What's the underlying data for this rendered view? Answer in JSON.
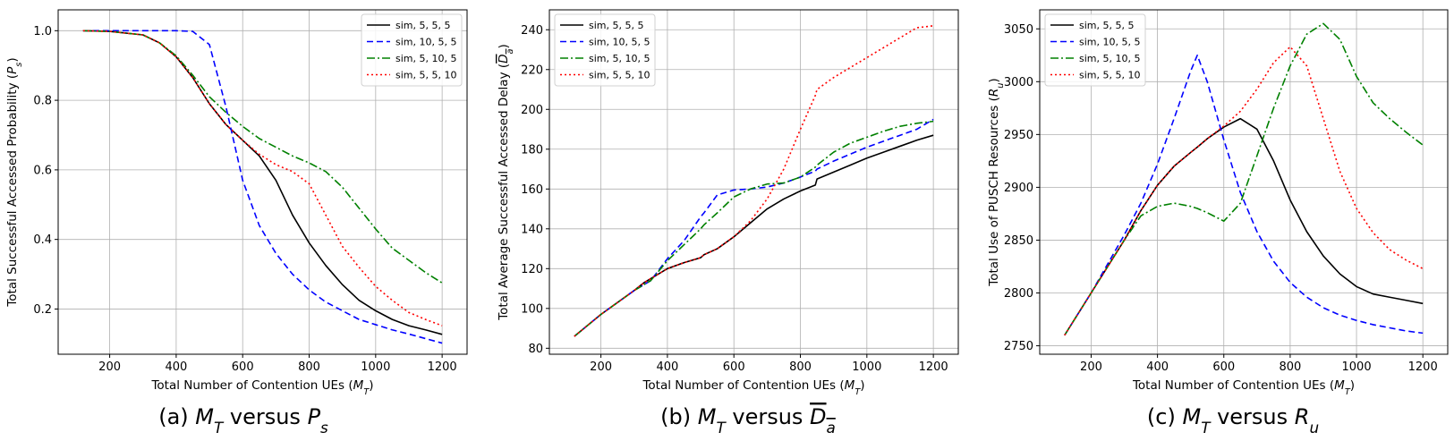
{
  "colors": {
    "black": "#000000",
    "blue": "#0000ff",
    "green": "#008000",
    "red": "#ff0000",
    "grid": "#b0b0b0"
  },
  "legend_position": "upper-right for (a), upper-left for (b) and (c)",
  "chart_data": [
    {
      "type": "line",
      "caption": "(a) $M_T$ versus $P_s$",
      "caption_parts": {
        "prefix": "(a) ",
        "x_sym": "M",
        "x_sub": "T",
        "mid": " versus ",
        "y_sym": "P",
        "y_sub": "s",
        "y_overline": false
      },
      "xlabel": "Total Number of Contention UEs ($M_T$)",
      "ylabel": "Total Successful Accessed Probability ($P_s$)",
      "xlim": [
        45,
        1275
      ],
      "ylim": [
        0.07,
        1.06
      ],
      "xticks": [
        200,
        400,
        600,
        800,
        1000,
        1200
      ],
      "yticks": [
        0.2,
        0.4,
        0.6,
        0.8,
        1.0
      ],
      "ytick_labels": [
        "0.2",
        "0.4",
        "0.6",
        "0.8",
        "1.0"
      ],
      "grid": true,
      "legend": "upper-right",
      "x": [
        120,
        200,
        300,
        350,
        400,
        450,
        500,
        550,
        600,
        650,
        700,
        750,
        800,
        850,
        900,
        950,
        1000,
        1050,
        1100,
        1150,
        1200
      ],
      "series": [
        {
          "name": "sim, 5, 5, 5",
          "color": "#000000",
          "dash": "",
          "values": [
            1.0,
            0.998,
            0.988,
            0.965,
            0.925,
            0.865,
            0.79,
            0.73,
            0.685,
            0.64,
            0.57,
            0.47,
            0.39,
            0.325,
            0.27,
            0.225,
            0.195,
            0.17,
            0.152,
            0.14,
            0.127
          ]
        },
        {
          "name": "sim, 10, 5, 5",
          "color": "#0000ff",
          "dash": "7,4",
          "values": [
            1.0,
            1.0,
            1.0,
            1.0,
            1.0,
            0.998,
            0.96,
            0.78,
            0.57,
            0.44,
            0.36,
            0.3,
            0.255,
            0.22,
            0.195,
            0.17,
            0.155,
            0.14,
            0.128,
            0.115,
            0.102
          ]
        },
        {
          "name": "sim, 5, 10, 5",
          "color": "#008000",
          "dash": "9,3,2,3",
          "values": [
            1.0,
            0.998,
            0.988,
            0.965,
            0.928,
            0.872,
            0.81,
            0.765,
            0.725,
            0.69,
            0.665,
            0.64,
            0.62,
            0.595,
            0.55,
            0.49,
            0.43,
            0.375,
            0.34,
            0.305,
            0.275
          ]
        },
        {
          "name": "sim, 5, 5, 10",
          "color": "#ff0000",
          "dash": "2,3",
          "values": [
            1.0,
            0.998,
            0.988,
            0.965,
            0.925,
            0.865,
            0.79,
            0.73,
            0.685,
            0.645,
            0.615,
            0.595,
            0.56,
            0.47,
            0.38,
            0.32,
            0.265,
            0.225,
            0.19,
            0.17,
            0.152
          ]
        }
      ]
    },
    {
      "type": "line",
      "caption": "(b) $M_T$ versus $\\overline{D_a}$",
      "caption_parts": {
        "prefix": "(b) ",
        "x_sym": "M",
        "x_sub": "T",
        "mid": " versus ",
        "y_sym": "D",
        "y_sub": "a",
        "y_overline": true
      },
      "xlabel": "Total Number of Contention UEs ($M_T$)",
      "ylabel": "Total Average Successful Accessed Delay ($\\overline{D_a}$)",
      "xlim": [
        45,
        1275
      ],
      "ylim": [
        77,
        250
      ],
      "xticks": [
        200,
        400,
        600,
        800,
        1000,
        1200
      ],
      "yticks": [
        80,
        100,
        120,
        140,
        160,
        180,
        200,
        220,
        240
      ],
      "ytick_labels": [
        "80",
        "100",
        "120",
        "140",
        "160",
        "180",
        "200",
        "220",
        "240"
      ],
      "grid": true,
      "legend": "upper-left",
      "x": [
        120,
        200,
        300,
        330,
        350,
        400,
        450,
        500,
        510,
        550,
        600,
        650,
        700,
        750,
        800,
        845,
        850,
        900,
        950,
        1000,
        1050,
        1100,
        1150,
        1200
      ],
      "series": [
        {
          "name": "sim, 5, 5, 5",
          "color": "#000000",
          "dash": "",
          "values": [
            86,
            97,
            109,
            113,
            115,
            120,
            123,
            125.5,
            127,
            130,
            136,
            143,
            150,
            155,
            159,
            162,
            165,
            168.5,
            172,
            175.5,
            178.5,
            181.5,
            184.5,
            187
          ]
        },
        {
          "name": "sim, 10, 5, 5",
          "color": "#0000ff",
          "dash": "7,4",
          "values": [
            86,
            97,
            109,
            112,
            114,
            125,
            134,
            146,
            148,
            157,
            159.5,
            160,
            161,
            163,
            166,
            169,
            170,
            174,
            177.5,
            181,
            184,
            187,
            190,
            195
          ]
        },
        {
          "name": "sim, 5, 10, 5",
          "color": "#008000",
          "dash": "9,3,2,3",
          "values": [
            86,
            97,
            109,
            112,
            114,
            124,
            132,
            140,
            142,
            148,
            156,
            160,
            162.5,
            163,
            166,
            171,
            172,
            178.5,
            183,
            186,
            189,
            191.5,
            193,
            194
          ]
        },
        {
          "name": "sim, 5, 5, 10",
          "color": "#ff0000",
          "dash": "2,3",
          "values": [
            86,
            97,
            109,
            113,
            115,
            120,
            123,
            125.5,
            127,
            130,
            136,
            144,
            155,
            170,
            190,
            207,
            210,
            216,
            221,
            226,
            231,
            236,
            241,
            242
          ]
        }
      ]
    },
    {
      "type": "line",
      "caption": "(c) $M_T$ versus $R_u$",
      "caption_parts": {
        "prefix": "(c) ",
        "x_sym": "M",
        "x_sub": "T",
        "mid": " versus ",
        "y_sym": "R",
        "y_sub": "u",
        "y_overline": false
      },
      "xlabel": "Total Number of Contention UEs ($M_T$)",
      "ylabel": "Total Use of PUSCH Resources ($R_u$)",
      "xlim": [
        45,
        1275
      ],
      "ylim": [
        2742,
        3068
      ],
      "xticks": [
        200,
        400,
        600,
        800,
        1000,
        1200
      ],
      "yticks": [
        2750,
        2800,
        2850,
        2900,
        2950,
        3000,
        3050
      ],
      "ytick_labels": [
        "2750",
        "2800",
        "2850",
        "2900",
        "2950",
        "3000",
        "3050"
      ],
      "grid": true,
      "legend": "upper-left",
      "x": [
        120,
        200,
        300,
        350,
        400,
        450,
        500,
        520,
        550,
        600,
        650,
        700,
        750,
        800,
        850,
        900,
        950,
        1000,
        1050,
        1100,
        1150,
        1200
      ],
      "series": [
        {
          "name": "sim, 5, 5, 5",
          "color": "#000000",
          "dash": "",
          "values": [
            2760,
            2800,
            2850,
            2878,
            2902,
            2920,
            2933,
            2938,
            2946,
            2957,
            2965,
            2955,
            2925,
            2888,
            2858,
            2835,
            2818,
            2806,
            2799,
            2796,
            2793,
            2790
          ]
        },
        {
          "name": "sim, 10, 5, 5",
          "color": "#0000ff",
          "dash": "7,4",
          "values": [
            2760,
            2800,
            2855,
            2885,
            2922,
            2965,
            3010,
            3025,
            3000,
            2945,
            2895,
            2858,
            2830,
            2810,
            2796,
            2786,
            2779,
            2774,
            2770,
            2767,
            2764,
            2762
          ]
        },
        {
          "name": "sim, 5, 10, 5",
          "color": "#008000",
          "dash": "9,3,2,3",
          "values": [
            2760,
            2800,
            2850,
            2873,
            2882,
            2885,
            2882,
            2880,
            2876,
            2868,
            2885,
            2930,
            2975,
            3015,
            3045,
            3055,
            3040,
            3005,
            2980,
            2965,
            2952,
            2940
          ]
        },
        {
          "name": "sim, 5, 5, 10",
          "color": "#ff0000",
          "dash": "2,3",
          "values": [
            2760,
            2800,
            2850,
            2878,
            2902,
            2920,
            2933,
            2938,
            2946,
            2958,
            2972,
            2993,
            3018,
            3033,
            3015,
            2965,
            2915,
            2880,
            2857,
            2841,
            2831,
            2823
          ]
        }
      ]
    }
  ]
}
